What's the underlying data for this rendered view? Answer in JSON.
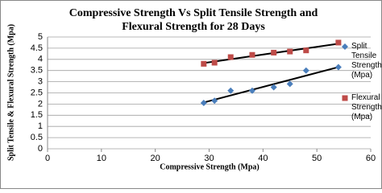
{
  "chart_data": {
    "type": "scatter",
    "title": [
      "Compressive Strength Vs Split Tensile Strength and",
      "Flexural Strength for 28 Days"
    ],
    "x_label": "Compressive Strength (Mpa)",
    "y_label": "Split Tensile & Flexural Strength (Mpa)",
    "x": [
      29,
      31,
      34,
      38,
      42,
      45,
      48,
      54
    ],
    "series": [
      {
        "name": "Split Tensile Strength (Mpa)",
        "color": "#4a7ebb",
        "marker": "diamond",
        "values": [
          2.05,
          2.15,
          2.6,
          2.6,
          2.75,
          2.9,
          3.5,
          3.65
        ]
      },
      {
        "name": "Flexural Strength (Mpa)",
        "color": "#be4b48",
        "marker": "square",
        "values": [
          3.8,
          3.85,
          4.1,
          4.2,
          4.3,
          4.35,
          4.4,
          4.75
        ]
      }
    ],
    "trendline": true,
    "xlim": [
      0,
      60
    ],
    "xticks": [
      0,
      10,
      20,
      30,
      40,
      50,
      60
    ],
    "ylim": [
      0,
      5
    ],
    "yticks": [
      0,
      0.5,
      1,
      1.5,
      2,
      2.5,
      3,
      3.5,
      4,
      4.5,
      5
    ],
    "grid": true,
    "legend": "right"
  }
}
